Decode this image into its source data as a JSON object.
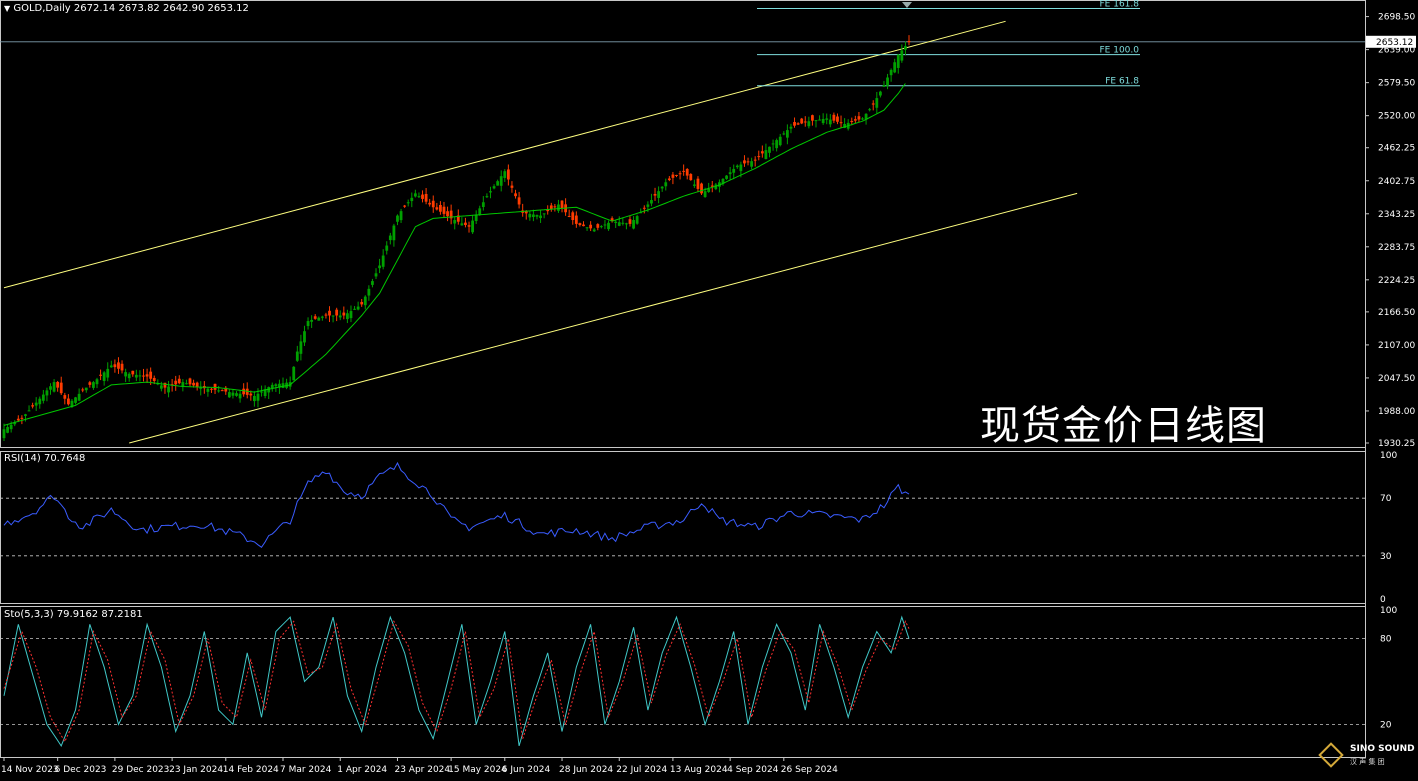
{
  "header": {
    "symbol": "GOLD,Daily",
    "ohlc": "2672.14 2673.82 2642.90 2653.12",
    "current_price": "2653.12"
  },
  "watermark": "现货金价日线图",
  "logo": {
    "brand": "SINO SOUND",
    "sub": "汉 声 集 团"
  },
  "colors": {
    "background": "#000000",
    "bull_candle": "#00a000",
    "bear_candle": "#ff3c00",
    "channel": "#ffff80",
    "moving_average": "#00c800",
    "fibonacci": "#7fdede",
    "rsi_line": "#3a5cff",
    "stoch_main": "#40c8c8",
    "stoch_signal": "#ff3030",
    "grid_dashed": "#c8c8c8",
    "axis": "#c8c8c8"
  },
  "chart_data": [
    {
      "type": "candlestick",
      "pane": "price",
      "ylim": [
        1930.25,
        2714
      ],
      "y_ticks": [
        "2698.50",
        "2639.00",
        "2579.50",
        "2520.00",
        "2462.25",
        "2402.75",
        "2343.25",
        "2283.75",
        "2224.25",
        "2166.50",
        "2107.00",
        "2047.50",
        "1988.00",
        "1930.25"
      ],
      "x_ticks": [
        "14 Nov 2023",
        "6 Dec 2023",
        "29 Dec 2023",
        "23 Jan 2024",
        "14 Feb 2024",
        "7 Mar 2024",
        "1 Apr 2024",
        "23 Apr 2024",
        "15 May 2024",
        "6 Jun 2024",
        "28 Jun 2024",
        "22 Jul 2024",
        "13 Aug 2024",
        "4 Sep 2024",
        "26 Sep 2024"
      ],
      "close_key_points": [
        [
          0,
          1955
        ],
        [
          5,
          1975
        ],
        [
          10,
          2010
        ],
        [
          14,
          2040
        ],
        [
          18,
          2000
        ],
        [
          22,
          2025
        ],
        [
          26,
          2045
        ],
        [
          30,
          2070
        ],
        [
          35,
          2055
        ],
        [
          40,
          2050
        ],
        [
          45,
          2030
        ],
        [
          50,
          2040
        ],
        [
          55,
          2030
        ],
        [
          60,
          2025
        ],
        [
          65,
          2020
        ],
        [
          70,
          2015
        ],
        [
          75,
          2035
        ],
        [
          80,
          2040
        ],
        [
          82,
          2095
        ],
        [
          85,
          2150
        ],
        [
          90,
          2160
        ],
        [
          95,
          2160
        ],
        [
          100,
          2180
        ],
        [
          105,
          2250
        ],
        [
          110,
          2340
        ],
        [
          115,
          2380
        ],
        [
          120,
          2355
        ],
        [
          125,
          2335
        ],
        [
          130,
          2320
        ],
        [
          135,
          2375
        ],
        [
          140,
          2420
        ],
        [
          145,
          2345
        ],
        [
          150,
          2340
        ],
        [
          155,
          2360
        ],
        [
          160,
          2325
        ],
        [
          165,
          2315
        ],
        [
          170,
          2330
        ],
        [
          175,
          2325
        ],
        [
          180,
          2360
        ],
        [
          185,
          2400
        ],
        [
          190,
          2420
        ],
        [
          195,
          2380
        ],
        [
          200,
          2400
        ],
        [
          205,
          2430
        ],
        [
          210,
          2440
        ],
        [
          215,
          2470
        ],
        [
          220,
          2500
        ],
        [
          225,
          2510
        ],
        [
          230,
          2515
        ],
        [
          235,
          2505
        ],
        [
          240,
          2515
        ],
        [
          243,
          2540
        ],
        [
          246,
          2575
        ],
        [
          250,
          2630
        ],
        [
          253,
          2653
        ]
      ],
      "bars": 254,
      "moving_average": [
        [
          0,
          1962
        ],
        [
          20,
          1998
        ],
        [
          30,
          2035
        ],
        [
          40,
          2040
        ],
        [
          50,
          2032
        ],
        [
          60,
          2030
        ],
        [
          70,
          2022
        ],
        [
          80,
          2035
        ],
        [
          90,
          2090
        ],
        [
          100,
          2160
        ],
        [
          105,
          2200
        ],
        [
          110,
          2260
        ],
        [
          115,
          2320
        ],
        [
          120,
          2335
        ],
        [
          130,
          2340
        ],
        [
          140,
          2345
        ],
        [
          150,
          2350
        ],
        [
          160,
          2355
        ],
        [
          170,
          2330
        ],
        [
          180,
          2350
        ],
        [
          190,
          2375
        ],
        [
          200,
          2395
        ],
        [
          210,
          2425
        ],
        [
          220,
          2460
        ],
        [
          230,
          2490
        ],
        [
          240,
          2510
        ],
        [
          246,
          2530
        ],
        [
          250,
          2560
        ],
        [
          252,
          2578
        ]
      ],
      "channel_upper": [
        [
          0,
          2210
        ],
        [
          280,
          2690
        ]
      ],
      "channel_lower": [
        [
          35,
          1930.25
        ],
        [
          300,
          2380
        ]
      ],
      "fib_levels": [
        {
          "label": "FE 161.8",
          "value": 2713
        },
        {
          "label": "FE 100.0",
          "value": 2630
        },
        {
          "label": "FE 61.8",
          "value": 2574
        }
      ]
    },
    {
      "type": "line",
      "pane": "rsi",
      "title": "RSI(14) 70.7648",
      "ylim": [
        0,
        100
      ],
      "y_ticks": [
        "100",
        "70",
        "30",
        "0"
      ],
      "levels": [
        70,
        30
      ],
      "series": [
        {
          "values_key_points": [
            [
              0,
              52
            ],
            [
              8,
              60
            ],
            [
              14,
              72
            ],
            [
              18,
              58
            ],
            [
              22,
              50
            ],
            [
              30,
              62
            ],
            [
              38,
              48
            ],
            [
              45,
              50
            ],
            [
              55,
              52
            ],
            [
              65,
              45
            ],
            [
              72,
              38
            ],
            [
              80,
              55
            ],
            [
              85,
              80
            ],
            [
              90,
              90
            ],
            [
              95,
              75
            ],
            [
              100,
              72
            ],
            [
              105,
              85
            ],
            [
              110,
              92
            ],
            [
              115,
              82
            ],
            [
              120,
              72
            ],
            [
              125,
              55
            ],
            [
              130,
              50
            ],
            [
              140,
              58
            ],
            [
              150,
              45
            ],
            [
              160,
              48
            ],
            [
              170,
              42
            ],
            [
              180,
              50
            ],
            [
              190,
              55
            ],
            [
              195,
              68
            ],
            [
              200,
              55
            ],
            [
              210,
              50
            ],
            [
              220,
              60
            ],
            [
              230,
              58
            ],
            [
              240,
              55
            ],
            [
              246,
              65
            ],
            [
              250,
              78
            ],
            [
              253,
              71
            ]
          ]
        }
      ]
    },
    {
      "type": "line",
      "pane": "stochastic",
      "title": "Sto(5,3,3) 79.9162 87.2181",
      "ylim": [
        0,
        100
      ],
      "y_ticks": [
        "100",
        "80",
        "20"
      ],
      "levels": [
        80,
        20
      ],
      "series": [
        {
          "name": "main",
          "values_key_points": [
            [
              0,
              40
            ],
            [
              4,
              90
            ],
            [
              8,
              55
            ],
            [
              12,
              20
            ],
            [
              16,
              5
            ],
            [
              20,
              30
            ],
            [
              24,
              90
            ],
            [
              28,
              60
            ],
            [
              32,
              20
            ],
            [
              36,
              40
            ],
            [
              40,
              90
            ],
            [
              44,
              60
            ],
            [
              48,
              15
            ],
            [
              52,
              40
            ],
            [
              56,
              85
            ],
            [
              60,
              30
            ],
            [
              64,
              20
            ],
            [
              68,
              70
            ],
            [
              72,
              25
            ],
            [
              76,
              85
            ],
            [
              80,
              95
            ],
            [
              84,
              50
            ],
            [
              88,
              60
            ],
            [
              92,
              95
            ],
            [
              96,
              40
            ],
            [
              100,
              15
            ],
            [
              104,
              60
            ],
            [
              108,
              95
            ],
            [
              112,
              70
            ],
            [
              116,
              30
            ],
            [
              120,
              10
            ],
            [
              124,
              50
            ],
            [
              128,
              90
            ],
            [
              132,
              20
            ],
            [
              136,
              50
            ],
            [
              140,
              85
            ],
            [
              144,
              5
            ],
            [
              148,
              40
            ],
            [
              152,
              70
            ],
            [
              156,
              15
            ],
            [
              160,
              60
            ],
            [
              164,
              90
            ],
            [
              168,
              20
            ],
            [
              172,
              50
            ],
            [
              176,
              88
            ],
            [
              180,
              30
            ],
            [
              184,
              70
            ],
            [
              188,
              95
            ],
            [
              192,
              60
            ],
            [
              196,
              20
            ],
            [
              200,
              50
            ],
            [
              204,
              85
            ],
            [
              208,
              20
            ],
            [
              212,
              60
            ],
            [
              216,
              90
            ],
            [
              220,
              70
            ],
            [
              224,
              30
            ],
            [
              228,
              90
            ],
            [
              232,
              60
            ],
            [
              236,
              25
            ],
            [
              240,
              60
            ],
            [
              244,
              85
            ],
            [
              248,
              70
            ],
            [
              251,
              95
            ],
            [
              253,
              80
            ]
          ]
        },
        {
          "name": "signal",
          "values_key_points": [
            [
              0,
              45
            ],
            [
              5,
              85
            ],
            [
              9,
              60
            ],
            [
              13,
              25
            ],
            [
              17,
              8
            ],
            [
              21,
              30
            ],
            [
              25,
              85
            ],
            [
              29,
              65
            ],
            [
              33,
              25
            ],
            [
              37,
              40
            ],
            [
              41,
              85
            ],
            [
              45,
              65
            ],
            [
              49,
              20
            ],
            [
              53,
              40
            ],
            [
              57,
              80
            ],
            [
              61,
              35
            ],
            [
              65,
              25
            ],
            [
              69,
              65
            ],
            [
              73,
              30
            ],
            [
              77,
              80
            ],
            [
              81,
              92
            ],
            [
              85,
              55
            ],
            [
              89,
              60
            ],
            [
              93,
              90
            ],
            [
              97,
              45
            ],
            [
              101,
              20
            ],
            [
              105,
              55
            ],
            [
              109,
              92
            ],
            [
              113,
              75
            ],
            [
              117,
              35
            ],
            [
              121,
              15
            ],
            [
              125,
              45
            ],
            [
              129,
              85
            ],
            [
              133,
              25
            ],
            [
              137,
              45
            ],
            [
              141,
              80
            ],
            [
              145,
              10
            ],
            [
              149,
              40
            ],
            [
              153,
              65
            ],
            [
              157,
              20
            ],
            [
              161,
              55
            ],
            [
              165,
              85
            ],
            [
              169,
              25
            ],
            [
              173,
              50
            ],
            [
              177,
              82
            ],
            [
              181,
              35
            ],
            [
              185,
              68
            ],
            [
              189,
              90
            ],
            [
              193,
              62
            ],
            [
              197,
              25
            ],
            [
              201,
              50
            ],
            [
              205,
              80
            ],
            [
              209,
              25
            ],
            [
              213,
              58
            ],
            [
              217,
              85
            ],
            [
              221,
              72
            ],
            [
              225,
              35
            ],
            [
              229,
              85
            ],
            [
              233,
              62
            ],
            [
              237,
              30
            ],
            [
              241,
              58
            ],
            [
              245,
              80
            ],
            [
              249,
              72
            ],
            [
              252,
              92
            ],
            [
              253,
              87
            ]
          ]
        }
      ]
    }
  ]
}
